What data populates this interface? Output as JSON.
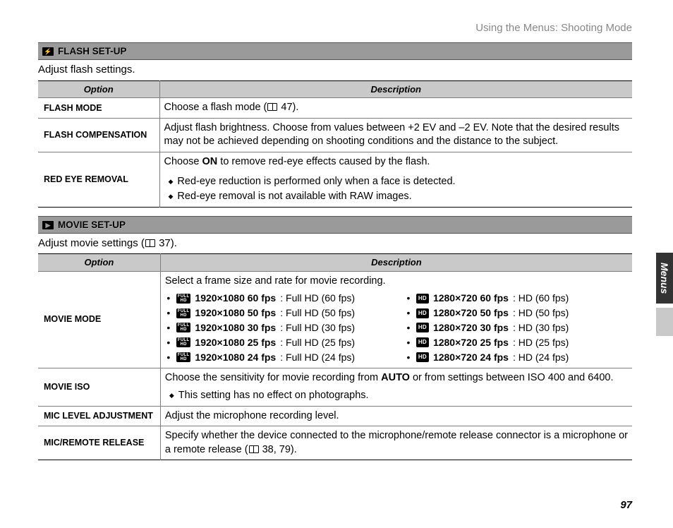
{
  "header": {
    "breadcrumb": "Using the Menus: Shooting Mode"
  },
  "sideTab": "Menus",
  "pageNumber": "97",
  "sections": [
    {
      "icon": "⚡",
      "title": "FLASH SET-UP",
      "intro": "Adjust flash settings.",
      "columns": {
        "option": "Option",
        "description": "Description"
      },
      "rows": [
        {
          "label": "FLASH MODE",
          "desc_pre": "Choose a flash mode (",
          "desc_ref": "47).",
          "type": "ref"
        },
        {
          "label": "FLASH COMPENSATION",
          "desc": "Adjust flash brightness.  Choose from values between +2 EV and –2 EV.  Note that the desired results may not be achieved depending on shooting conditions and the distance to the subject.",
          "type": "plain"
        },
        {
          "label": "RED EYE REMOVAL",
          "desc_pre": "Choose ",
          "desc_bold": "ON",
          "desc_post": " to remove red-eye effects caused by the flash.",
          "notes": [
            "Red-eye reduction is performed only when a face is detected.",
            "Red-eye removal is not available with RAW images."
          ],
          "type": "bold_notes"
        }
      ]
    },
    {
      "icon": "▶",
      "title": "MOVIE SET-UP",
      "intro_pre": "Adjust movie settings (",
      "intro_ref": "37).",
      "columns": {
        "option": "Option",
        "description": "Description"
      },
      "rows": [
        {
          "label": "MOVIE MODE",
          "desc": "Select a frame size and rate for movie recording.",
          "type": "movie_modes",
          "left": [
            {
              "badge": "FULL HD",
              "spec": "1920×1080 60 fps",
              "tail": ": Full HD (60 fps)"
            },
            {
              "badge": "FULL HD",
              "spec": "1920×1080 50 fps",
              "tail": ": Full HD (50 fps)"
            },
            {
              "badge": "FULL HD",
              "spec": "1920×1080 30 fps",
              "tail": ": Full HD (30 fps)"
            },
            {
              "badge": "FULL HD",
              "spec": "1920×1080 25 fps",
              "tail": ": Full HD (25 fps)"
            },
            {
              "badge": "FULL HD",
              "spec": "1920×1080 24 fps",
              "tail": ": Full HD (24 fps)"
            }
          ],
          "right": [
            {
              "badge": "HD",
              "spec": "1280×720 60 fps",
              "tail": ": HD (60 fps)"
            },
            {
              "badge": "HD",
              "spec": "1280×720 50 fps",
              "tail": ": HD (50 fps)"
            },
            {
              "badge": "HD",
              "spec": "1280×720 30 fps",
              "tail": ": HD (30 fps)"
            },
            {
              "badge": "HD",
              "spec": "1280×720 25 fps",
              "tail": ": HD (25 fps)"
            },
            {
              "badge": "HD",
              "spec": "1280×720 24 fps",
              "tail": ": HD (24 fps)"
            }
          ]
        },
        {
          "label": "MOVIE ISO",
          "desc_pre": "Choose the sensitivity for movie recording from ",
          "desc_bold": "AUTO",
          "desc_post": " or from settings between ISO 400 and 6400.",
          "notes": [
            "This setting has no effect on photographs."
          ],
          "type": "bold_notes"
        },
        {
          "label": "MIC LEVEL ADJUSTMENT",
          "desc": "Adjust the microphone recording level.",
          "type": "plain"
        },
        {
          "label": "MIC/REMOTE RELEASE",
          "desc_pre": "Specify whether the device connected to the microphone/remote release connector is a microphone or a remote release (",
          "desc_ref": "38, 79).",
          "type": "ref"
        }
      ]
    }
  ]
}
